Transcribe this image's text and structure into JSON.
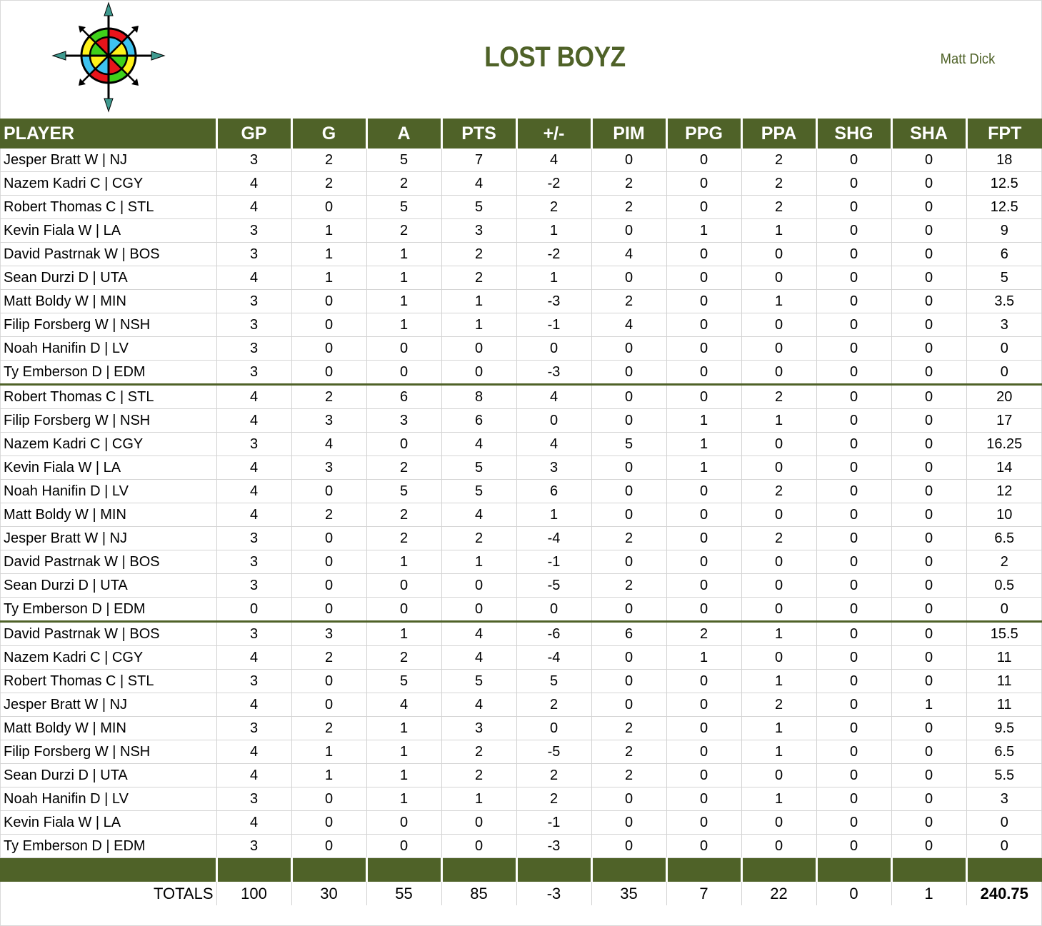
{
  "header": {
    "title": "LOST BOYZ",
    "manager": "Matt Dick",
    "logo_icon": "compass-rose-icon"
  },
  "colors": {
    "accent": "#4f6228",
    "header_text": "#ffffff",
    "grid": "#d4d4d4",
    "logo_red": "#e8141b",
    "logo_green": "#3fd11a",
    "logo_yellow": "#fff21a",
    "logo_blue": "#3ec3f0",
    "logo_arrow_tip": "#3f9a8f"
  },
  "table": {
    "columns": [
      "PLAYER",
      "GP",
      "G",
      "A",
      "PTS",
      "+/-",
      "PIM",
      "PPG",
      "PPA",
      "SHG",
      "SHA",
      "FPT"
    ],
    "groups": [
      {
        "rows": [
          [
            "Jesper Bratt W | NJ",
            "3",
            "2",
            "5",
            "7",
            "4",
            "0",
            "0",
            "2",
            "0",
            "0",
            "18"
          ],
          [
            "Nazem Kadri C | CGY",
            "4",
            "2",
            "2",
            "4",
            "-2",
            "2",
            "0",
            "2",
            "0",
            "0",
            "12.5"
          ],
          [
            "Robert Thomas C | STL",
            "4",
            "0",
            "5",
            "5",
            "2",
            "2",
            "0",
            "2",
            "0",
            "0",
            "12.5"
          ],
          [
            "Kevin Fiala W | LA",
            "3",
            "1",
            "2",
            "3",
            "1",
            "0",
            "1",
            "1",
            "0",
            "0",
            "9"
          ],
          [
            "David Pastrnak W | BOS",
            "3",
            "1",
            "1",
            "2",
            "-2",
            "4",
            "0",
            "0",
            "0",
            "0",
            "6"
          ],
          [
            "Sean Durzi D | UTA",
            "4",
            "1",
            "1",
            "2",
            "1",
            "0",
            "0",
            "0",
            "0",
            "0",
            "5"
          ],
          [
            "Matt Boldy W | MIN",
            "3",
            "0",
            "1",
            "1",
            "-3",
            "2",
            "0",
            "1",
            "0",
            "0",
            "3.5"
          ],
          [
            "Filip Forsberg W | NSH",
            "3",
            "0",
            "1",
            "1",
            "-1",
            "4",
            "0",
            "0",
            "0",
            "0",
            "3"
          ],
          [
            "Noah Hanifin D | LV",
            "3",
            "0",
            "0",
            "0",
            "0",
            "0",
            "0",
            "0",
            "0",
            "0",
            "0"
          ],
          [
            "Ty Emberson D | EDM",
            "3",
            "0",
            "0",
            "0",
            "-3",
            "0",
            "0",
            "0",
            "0",
            "0",
            "0"
          ]
        ]
      },
      {
        "rows": [
          [
            "Robert Thomas C | STL",
            "4",
            "2",
            "6",
            "8",
            "4",
            "0",
            "0",
            "2",
            "0",
            "0",
            "20"
          ],
          [
            "Filip Forsberg W | NSH",
            "4",
            "3",
            "3",
            "6",
            "0",
            "0",
            "1",
            "1",
            "0",
            "0",
            "17"
          ],
          [
            "Nazem Kadri C | CGY",
            "3",
            "4",
            "0",
            "4",
            "4",
            "5",
            "1",
            "0",
            "0",
            "0",
            "16.25"
          ],
          [
            "Kevin Fiala W | LA",
            "4",
            "3",
            "2",
            "5",
            "3",
            "0",
            "1",
            "0",
            "0",
            "0",
            "14"
          ],
          [
            "Noah Hanifin D | LV",
            "4",
            "0",
            "5",
            "5",
            "6",
            "0",
            "0",
            "2",
            "0",
            "0",
            "12"
          ],
          [
            "Matt Boldy W | MIN",
            "4",
            "2",
            "2",
            "4",
            "1",
            "0",
            "0",
            "0",
            "0",
            "0",
            "10"
          ],
          [
            "Jesper Bratt W | NJ",
            "3",
            "0",
            "2",
            "2",
            "-4",
            "2",
            "0",
            "2",
            "0",
            "0",
            "6.5"
          ],
          [
            "David Pastrnak W | BOS",
            "3",
            "0",
            "1",
            "1",
            "-1",
            "0",
            "0",
            "0",
            "0",
            "0",
            "2"
          ],
          [
            "Sean Durzi D | UTA",
            "3",
            "0",
            "0",
            "0",
            "-5",
            "2",
            "0",
            "0",
            "0",
            "0",
            "0.5"
          ],
          [
            "Ty Emberson D | EDM",
            "0",
            "0",
            "0",
            "0",
            "0",
            "0",
            "0",
            "0",
            "0",
            "0",
            "0"
          ]
        ]
      },
      {
        "rows": [
          [
            "David Pastrnak W | BOS",
            "3",
            "3",
            "1",
            "4",
            "-6",
            "6",
            "2",
            "1",
            "0",
            "0",
            "15.5"
          ],
          [
            "Nazem Kadri C | CGY",
            "4",
            "2",
            "2",
            "4",
            "-4",
            "0",
            "1",
            "0",
            "0",
            "0",
            "11"
          ],
          [
            "Robert Thomas C | STL",
            "3",
            "0",
            "5",
            "5",
            "5",
            "0",
            "0",
            "1",
            "0",
            "0",
            "11"
          ],
          [
            "Jesper Bratt W | NJ",
            "4",
            "0",
            "4",
            "4",
            "2",
            "0",
            "0",
            "2",
            "0",
            "1",
            "11"
          ],
          [
            "Matt Boldy W | MIN",
            "3",
            "2",
            "1",
            "3",
            "0",
            "2",
            "0",
            "1",
            "0",
            "0",
            "9.5"
          ],
          [
            "Filip Forsberg W | NSH",
            "4",
            "1",
            "1",
            "2",
            "-5",
            "2",
            "0",
            "1",
            "0",
            "0",
            "6.5"
          ],
          [
            "Sean Durzi D | UTA",
            "4",
            "1",
            "1",
            "2",
            "2",
            "2",
            "0",
            "0",
            "0",
            "0",
            "5.5"
          ],
          [
            "Noah Hanifin D | LV",
            "3",
            "0",
            "1",
            "1",
            "2",
            "0",
            "0",
            "1",
            "0",
            "0",
            "3"
          ],
          [
            "Kevin Fiala W | LA",
            "4",
            "0",
            "0",
            "0",
            "-1",
            "0",
            "0",
            "0",
            "0",
            "0",
            "0"
          ],
          [
            "Ty Emberson D | EDM",
            "3",
            "0",
            "0",
            "0",
            "-3",
            "0",
            "0",
            "0",
            "0",
            "0",
            "0"
          ]
        ]
      }
    ],
    "totals": {
      "label": "TOTALS",
      "values": [
        "100",
        "30",
        "55",
        "85",
        "-3",
        "35",
        "7",
        "22",
        "0",
        "1",
        "240.75"
      ]
    }
  }
}
